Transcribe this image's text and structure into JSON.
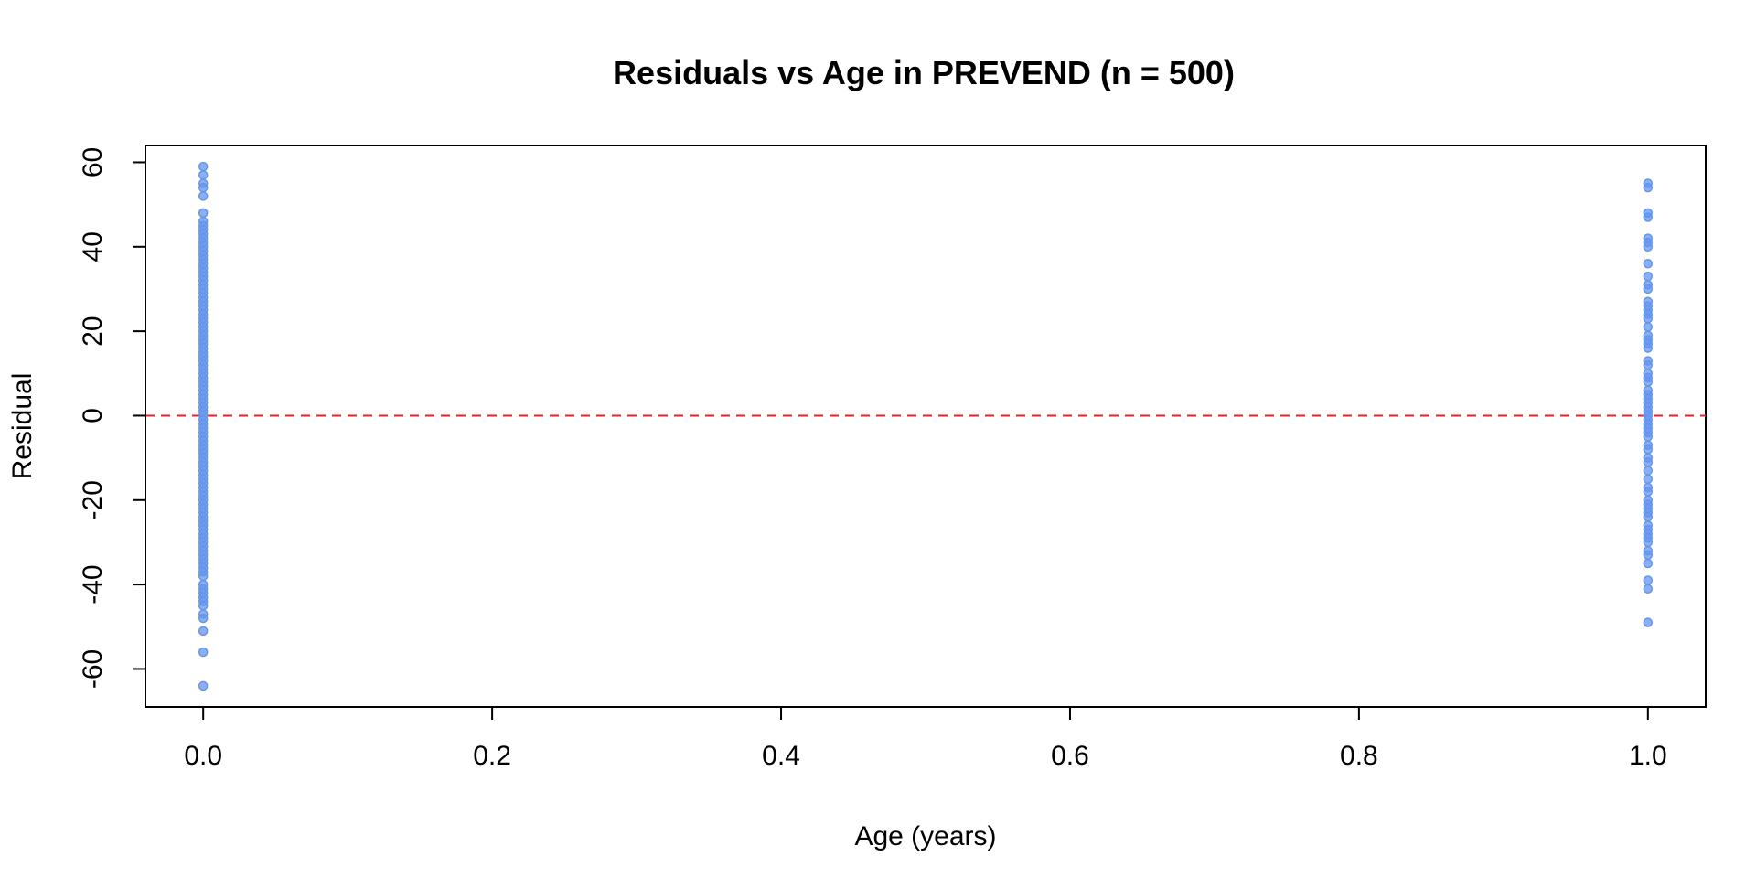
{
  "chart_data": {
    "type": "scatter",
    "title": "Residuals vs Age in PREVEND (n = 500)",
    "xlabel": "Age (years)",
    "ylabel": "Residual",
    "xlim": [
      -0.04,
      1.04
    ],
    "ylim": [
      -69,
      64
    ],
    "xticks": [
      0.0,
      0.2,
      0.4,
      0.6,
      0.8,
      1.0
    ],
    "xtick_labels": [
      "0.0",
      "0.2",
      "0.4",
      "0.6",
      "0.8",
      "1.0"
    ],
    "yticks": [
      -60,
      -40,
      -20,
      0,
      20,
      40,
      60
    ],
    "ytick_labels": [
      "-60",
      "-40",
      "-20",
      "0",
      "20",
      "40",
      "60"
    ],
    "reference_line": {
      "y": 0,
      "style": "dashed",
      "color": "#e8202a"
    },
    "grid": false,
    "legend": "none",
    "point_color": "#6495ed",
    "series": [
      {
        "x_value": 0.0,
        "residuals": [
          59,
          57,
          55,
          54,
          52,
          48,
          46,
          45,
          44,
          43,
          42,
          41,
          40,
          39,
          38,
          37,
          36,
          35,
          34,
          33,
          32,
          31,
          30,
          29,
          28,
          27,
          26,
          25,
          24,
          23,
          22,
          21,
          20,
          19,
          18,
          17,
          16,
          15,
          14,
          13,
          12,
          11,
          10,
          9,
          8,
          7,
          6,
          5,
          4,
          3,
          2,
          1,
          0,
          -1,
          -2,
          -3,
          -4,
          -5,
          -6,
          -7,
          -8,
          -9,
          -10,
          -11,
          -12,
          -13,
          -14,
          -15,
          -16,
          -17,
          -18,
          -19,
          -20,
          -21,
          -22,
          -23,
          -24,
          -25,
          -26,
          -27,
          -28,
          -29,
          -30,
          -31,
          -32,
          -33,
          -34,
          -35,
          -36,
          -37,
          -38,
          -40,
          -41,
          -42,
          -43,
          -44,
          -45,
          -47,
          -48,
          -51,
          -56,
          -64
        ]
      },
      {
        "x_value": 1.0,
        "residuals": [
          55,
          54,
          48,
          47,
          42,
          41,
          40,
          36,
          33,
          31,
          30,
          27,
          26,
          25,
          24,
          23,
          21,
          19,
          18,
          17,
          16,
          13,
          12,
          10,
          9,
          8,
          6,
          5,
          4,
          3,
          2,
          1,
          0,
          -1,
          -2,
          -3,
          -4,
          -5,
          -7,
          -8,
          -10,
          -11,
          -13,
          -15,
          -17,
          -18,
          -20,
          -21,
          -22,
          -23,
          -24,
          -26,
          -27,
          -28,
          -29,
          -30,
          -32,
          -33,
          -35,
          -39,
          -41,
          -49
        ]
      }
    ]
  }
}
